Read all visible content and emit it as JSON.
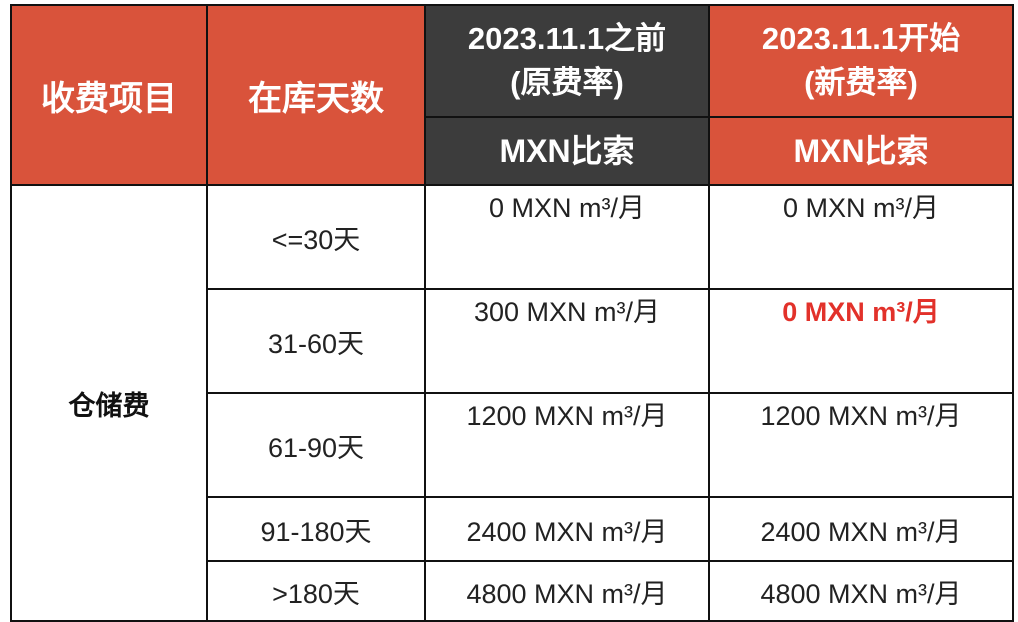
{
  "header": {
    "item_label": "收费项目",
    "days_label": "在库天数",
    "old_period": {
      "line1": "2023.11.1之前",
      "line2": "(原费率)",
      "currency": "MXN比索"
    },
    "new_period": {
      "line1": "2023.11.1开始",
      "line2": "(新费率)",
      "currency": "MXN比索"
    }
  },
  "fee_item": "仓储费",
  "colors": {
    "header_red": "#d9533b",
    "header_dark": "#3c3c3c",
    "highlight_text": "#e2312a",
    "border": "#111111"
  },
  "rows": [
    {
      "days": "<=30天",
      "old_rate": "0 MXN m³/月",
      "new_rate": "0 MXN m³/月",
      "new_highlight": false
    },
    {
      "days": "31-60天",
      "old_rate": "300 MXN m³/月",
      "new_rate": "0 MXN m³/月",
      "new_highlight": true
    },
    {
      "days": "61-90天",
      "old_rate": "1200 MXN m³/月",
      "new_rate": "1200 MXN m³/月",
      "new_highlight": false
    },
    {
      "days": "91-180天",
      "old_rate": "2400 MXN m³/月",
      "new_rate": "2400 MXN m³/月",
      "new_highlight": false
    },
    {
      "days": ">180天",
      "old_rate": "4800 MXN m³/月",
      "new_rate": "4800 MXN m³/月",
      "new_highlight": false
    }
  ]
}
